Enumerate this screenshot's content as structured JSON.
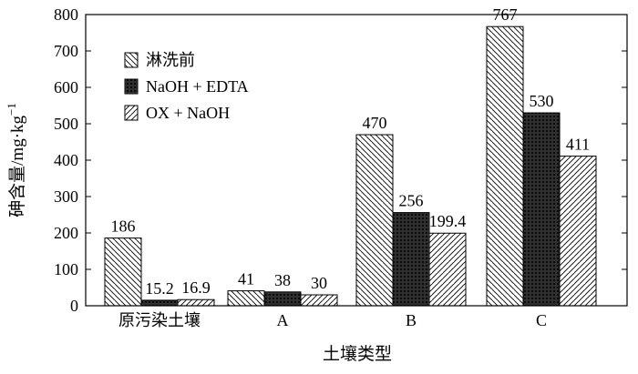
{
  "chart_data": {
    "type": "bar",
    "title": "",
    "xlabel": "土壤类型",
    "ylabel_main": "砷含量/mg·kg",
    "ylabel_sup": "−1",
    "ylim": [
      0,
      800
    ],
    "yticks": [
      0,
      100,
      200,
      300,
      400,
      500,
      600,
      700,
      800
    ],
    "categories": [
      "原污染土壤",
      "A",
      "B",
      "C"
    ],
    "series": [
      {
        "name": "淋洗前",
        "values": [
          186,
          41,
          470,
          767
        ],
        "labels": [
          "186",
          "41",
          "470",
          "767"
        ],
        "pattern": "diagonal-back"
      },
      {
        "name": "NaOH + EDTA",
        "values": [
          15.2,
          38,
          256,
          530
        ],
        "labels": [
          "15.2",
          "38",
          "256",
          "530"
        ],
        "pattern": "crosshatch-dense"
      },
      {
        "name": "OX + NaOH",
        "values": [
          16.9,
          30,
          199.4,
          411
        ],
        "labels": [
          "16.9",
          "30",
          "199.4",
          "411"
        ],
        "pattern": "diagonal-forward"
      }
    ],
    "legend_position": "top-left",
    "grid": false
  }
}
